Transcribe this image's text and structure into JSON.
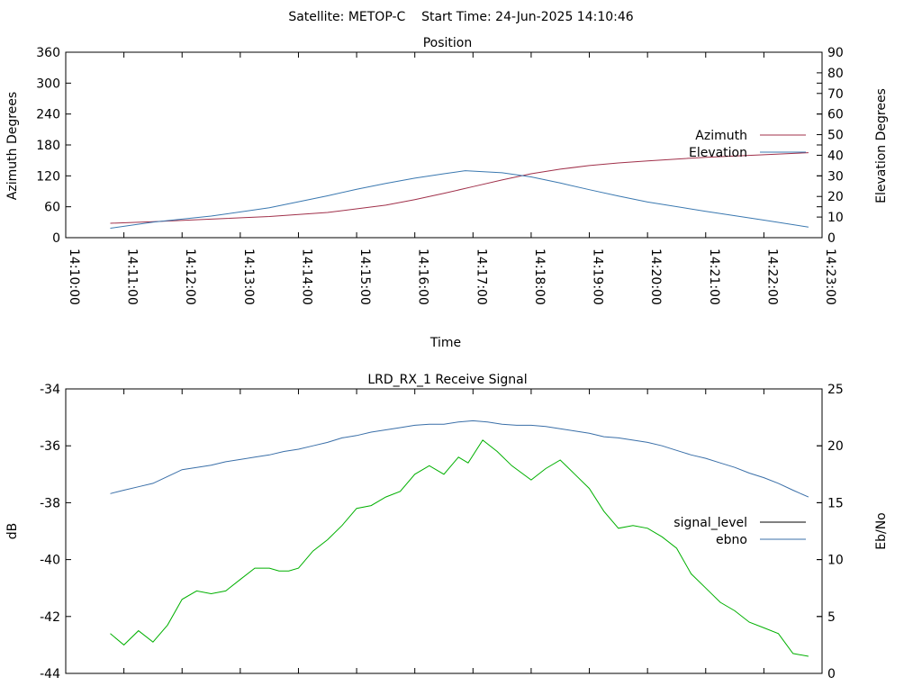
{
  "header": {
    "title": "Satellite: METOP-C    Start Time: 24-Jun-2025 14:10:46"
  },
  "colors": {
    "azimuth": "#a0304a",
    "elevation": "#3a78b0",
    "signal_level": "#00b000",
    "ebno": "#3a6fa8",
    "axis": "#000000"
  },
  "chart_data": [
    {
      "type": "line",
      "title": "Position",
      "xlabel": "Time",
      "ylabel": "Azimuth Degrees",
      "y2label": "Elevation Degrees",
      "xlim": [
        "14:10:00",
        "14:23:00"
      ],
      "ylim": [
        0,
        360
      ],
      "y2lim": [
        0,
        90
      ],
      "x_ticks": [
        "14:10:00",
        "14:11:00",
        "14:12:00",
        "14:13:00",
        "14:14:00",
        "14:15:00",
        "14:16:00",
        "14:17:00",
        "14:18:00",
        "14:19:00",
        "14:20:00",
        "14:21:00",
        "14:22:00",
        "14:23:00"
      ],
      "y_ticks": [
        "0",
        "60",
        "120",
        "180",
        "240",
        "300",
        "360"
      ],
      "y2_ticks": [
        "0",
        "10",
        "20",
        "30",
        "40",
        "50",
        "60",
        "70",
        "80",
        "90"
      ],
      "legend_position": "right",
      "grid": false,
      "series": [
        {
          "name": "Azimuth",
          "axis": "y",
          "x": [
            "14:10:46",
            "14:11:30",
            "14:12:30",
            "14:13:30",
            "14:14:30",
            "14:15:30",
            "14:16:00",
            "14:16:30",
            "14:17:00",
            "14:17:30",
            "14:18:00",
            "14:18:30",
            "14:19:00",
            "14:19:30",
            "14:20:00",
            "14:21:00",
            "14:22:00",
            "14:22:46"
          ],
          "values": [
            28,
            31,
            36,
            41,
            49,
            63,
            74,
            86,
            99,
            112,
            124,
            133,
            140,
            145,
            149,
            156,
            161,
            165
          ]
        },
        {
          "name": "Elevation",
          "axis": "y2",
          "x": [
            "14:10:46",
            "14:11:30",
            "14:12:30",
            "14:13:30",
            "14:14:30",
            "14:15:00",
            "14:15:30",
            "14:16:00",
            "14:16:30",
            "14:16:52",
            "14:17:30",
            "14:18:00",
            "14:18:30",
            "14:19:00",
            "14:19:30",
            "14:20:00",
            "14:21:00",
            "14:22:00",
            "14:22:46"
          ],
          "values": [
            4.6,
            7.5,
            10.5,
            14.5,
            20.3,
            23.5,
            26.3,
            28.9,
            31.0,
            32.5,
            31.5,
            29.5,
            26.5,
            23.3,
            20.2,
            17.3,
            12.8,
            8.5,
            5.1
          ]
        }
      ]
    },
    {
      "type": "line",
      "title": "LRD_RX_1 Receive Signal",
      "xlabel": "",
      "ylabel": "dB",
      "y2label": "Eb/No",
      "xlim": [
        "14:10:00",
        "14:23:00"
      ],
      "ylim": [
        -44,
        -34
      ],
      "y2lim": [
        0,
        25
      ],
      "y_ticks": [
        "-44",
        "-42",
        "-40",
        "-38",
        "-36",
        "-34"
      ],
      "y2_ticks": [
        "0",
        "5",
        "10",
        "15",
        "20",
        "25"
      ],
      "legend_position": "right",
      "grid": false,
      "series": [
        {
          "name": "signal_level",
          "axis": "y",
          "x": [
            "14:10:46",
            "14:11:00",
            "14:11:15",
            "14:11:30",
            "14:11:45",
            "14:12:00",
            "14:12:15",
            "14:12:30",
            "14:12:45",
            "14:13:00",
            "14:13:15",
            "14:13:30",
            "14:13:40",
            "14:13:50",
            "14:14:00",
            "14:14:15",
            "14:14:30",
            "14:14:45",
            "14:15:00",
            "14:15:15",
            "14:15:30",
            "14:15:45",
            "14:16:00",
            "14:16:15",
            "14:16:30",
            "14:16:45",
            "14:16:55",
            "14:17:10",
            "14:17:25",
            "14:17:40",
            "14:18:00",
            "14:18:15",
            "14:18:30",
            "14:18:45",
            "14:19:00",
            "14:19:15",
            "14:19:30",
            "14:19:45",
            "14:20:00",
            "14:20:15",
            "14:20:30",
            "14:20:45",
            "14:21:00",
            "14:21:15",
            "14:21:30",
            "14:21:45",
            "14:22:00",
            "14:22:15",
            "14:22:30",
            "14:22:46"
          ],
          "values": [
            -42.6,
            -43.0,
            -42.5,
            -42.9,
            -42.3,
            -41.4,
            -41.1,
            -41.2,
            -41.1,
            -40.7,
            -40.3,
            -40.3,
            -40.4,
            -40.4,
            -40.3,
            -39.7,
            -39.3,
            -38.8,
            -38.2,
            -38.1,
            -37.8,
            -37.6,
            -37.0,
            -36.7,
            -37.0,
            -36.4,
            -36.6,
            -35.8,
            -36.2,
            -36.7,
            -37.2,
            -36.8,
            -36.5,
            -37.0,
            -37.5,
            -38.3,
            -38.9,
            -38.8,
            -38.9,
            -39.2,
            -39.6,
            -40.5,
            -41.0,
            -41.5,
            -41.8,
            -42.2,
            -42.4,
            -42.6,
            -43.3,
            -43.4
          ]
        },
        {
          "name": "ebno",
          "axis": "y2",
          "x": [
            "14:10:46",
            "14:11:00",
            "14:11:15",
            "14:11:30",
            "14:11:45",
            "14:12:00",
            "14:12:15",
            "14:12:30",
            "14:12:45",
            "14:13:00",
            "14:13:15",
            "14:13:30",
            "14:13:45",
            "14:14:00",
            "14:14:15",
            "14:14:30",
            "14:14:45",
            "14:15:00",
            "14:15:15",
            "14:15:30",
            "14:15:45",
            "14:16:00",
            "14:16:15",
            "14:16:30",
            "14:16:45",
            "14:17:00",
            "14:17:15",
            "14:17:30",
            "14:17:45",
            "14:18:00",
            "14:18:15",
            "14:18:30",
            "14:18:45",
            "14:19:00",
            "14:19:15",
            "14:19:30",
            "14:19:45",
            "14:20:00",
            "14:20:15",
            "14:20:30",
            "14:20:45",
            "14:21:00",
            "14:21:15",
            "14:21:30",
            "14:21:45",
            "14:22:00",
            "14:22:15",
            "14:22:30",
            "14:22:46"
          ],
          "values": [
            15.8,
            16.1,
            16.4,
            16.7,
            17.3,
            17.9,
            18.1,
            18.3,
            18.6,
            18.8,
            19.0,
            19.2,
            19.5,
            19.7,
            20.0,
            20.3,
            20.7,
            20.9,
            21.2,
            21.4,
            21.6,
            21.8,
            21.9,
            21.9,
            22.1,
            22.2,
            22.1,
            21.9,
            21.8,
            21.8,
            21.7,
            21.5,
            21.3,
            21.1,
            20.8,
            20.7,
            20.5,
            20.3,
            20.0,
            19.6,
            19.2,
            18.9,
            18.5,
            18.1,
            17.6,
            17.2,
            16.7,
            16.1,
            15.5
          ]
        }
      ]
    }
  ]
}
